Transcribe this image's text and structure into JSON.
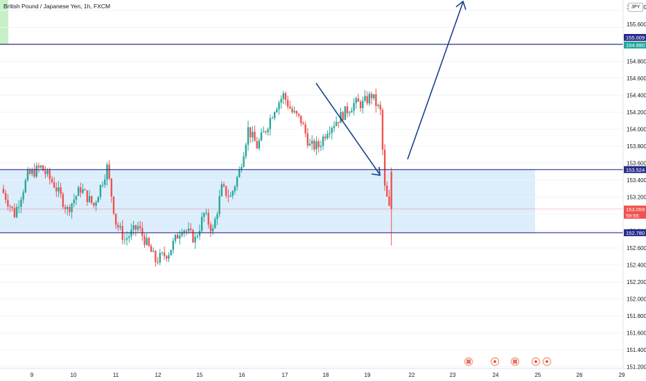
{
  "header": {
    "title": "British Pound / Japanese Yen, 1h, FXCM",
    "currency_label": "JPY"
  },
  "colors": {
    "up": "#26a69a",
    "down": "#ef5350",
    "level_line": "#2a2e8c",
    "zone_fill": "#d6eafb",
    "arrow": "#1b3f8b",
    "current_price": "#ef5350",
    "level_badge": "#2a2e8c",
    "prev_range_fill": "#c8f0c8"
  },
  "chart_data": {
    "type": "candlestick",
    "title": "British Pound / Japanese Yen, 1h, FXCM",
    "y_ticks": [
      "155.800",
      "155.600",
      "155.000",
      "154.800",
      "154.600",
      "154.400",
      "154.200",
      "154.000",
      "153.800",
      "153.600",
      "153.400",
      "153.200",
      "153.000",
      "152.800",
      "152.600",
      "152.400",
      "152.200",
      "152.000",
      "151.800",
      "151.600",
      "151.400",
      "151.200"
    ],
    "x_ticks": [
      "9",
      "10",
      "11",
      "12",
      "15",
      "16",
      "17",
      "18",
      "19",
      "22",
      "23",
      "24",
      "25",
      "26",
      "29"
    ],
    "ylim": [
      151.1,
      155.8
    ],
    "levels": [
      {
        "label": "155.009",
        "value": 155.009
      },
      {
        "label": "154.990",
        "value": 154.99
      },
      {
        "label": "153.524",
        "value": 153.524
      },
      {
        "label": "152.780",
        "value": 152.78
      }
    ],
    "current_price": {
      "label": "153.059",
      "countdown": "59:55",
      "value": 153.059
    },
    "zone": {
      "from": 152.78,
      "to": 153.524
    },
    "path_points": [
      [
        0,
        153.3
      ],
      [
        3,
        153.0
      ],
      [
        6,
        153.45
      ],
      [
        9,
        153.55
      ],
      [
        12,
        153.35
      ],
      [
        15,
        153.05
      ],
      [
        18,
        153.3
      ],
      [
        21,
        153.1
      ],
      [
        24,
        153.55
      ],
      [
        26,
        152.9
      ],
      [
        28,
        152.7
      ],
      [
        31,
        152.85
      ],
      [
        33,
        152.65
      ],
      [
        35,
        152.45
      ],
      [
        38,
        152.55
      ],
      [
        41,
        152.85
      ],
      [
        44,
        152.7
      ],
      [
        46,
        153.0
      ],
      [
        48,
        152.8
      ],
      [
        50,
        153.3
      ],
      [
        52,
        153.2
      ],
      [
        54,
        153.5
      ],
      [
        56,
        154.0
      ],
      [
        58,
        153.8
      ],
      [
        60,
        154.0
      ],
      [
        62,
        154.25
      ],
      [
        64,
        154.4
      ],
      [
        66,
        154.2
      ],
      [
        68,
        154.1
      ],
      [
        70,
        153.8
      ],
      [
        72,
        153.8
      ],
      [
        74,
        154.0
      ],
      [
        76,
        154.1
      ],
      [
        78,
        154.2
      ],
      [
        80,
        154.3
      ],
      [
        82,
        154.3
      ],
      [
        84,
        154.4
      ],
      [
        86,
        154.2
      ],
      [
        87,
        153.3
      ],
      [
        88,
        153.06
      ]
    ],
    "x_tick_bars": [
      0,
      9,
      18,
      27,
      36,
      45,
      54,
      63,
      72,
      81,
      90,
      99,
      108,
      117,
      126
    ],
    "events": [
      "flag",
      "dot",
      "flag",
      "dot",
      "dot"
    ]
  }
}
